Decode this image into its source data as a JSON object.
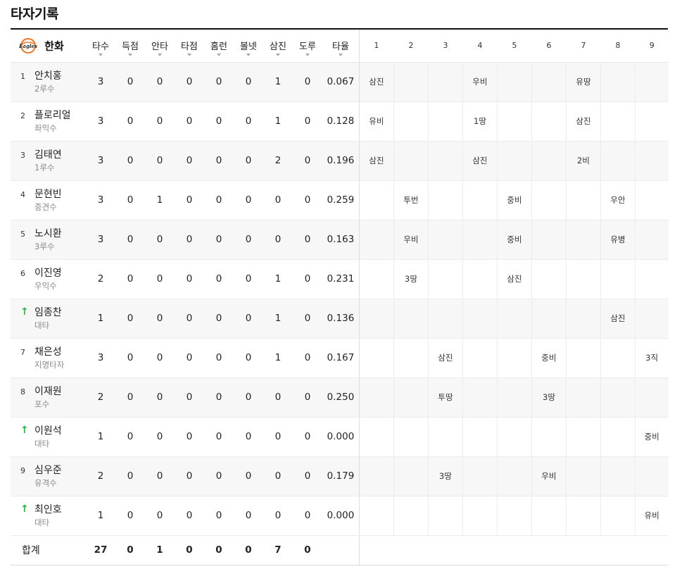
{
  "section_title": "타자기록",
  "team": {
    "name": "한화",
    "logo_text": "Eagles",
    "accent": "#f37321"
  },
  "stat_headers": [
    "타수",
    "득점",
    "안타",
    "타점",
    "홈런",
    "볼넷",
    "삼진",
    "도루",
    "타율"
  ],
  "innings": [
    "1",
    "2",
    "3",
    "4",
    "5",
    "6",
    "7",
    "8",
    "9"
  ],
  "players": [
    {
      "order": "1",
      "sub": false,
      "name": "안치홍",
      "pos": "2루수",
      "stats": [
        "3",
        "0",
        "0",
        "0",
        "0",
        "0",
        "1",
        "0",
        "0.067"
      ],
      "innings": [
        "삼진",
        "",
        "",
        "우비",
        "",
        "",
        "유땅",
        "",
        ""
      ]
    },
    {
      "order": "2",
      "sub": false,
      "name": "플로리얼",
      "pos": "좌익수",
      "stats": [
        "3",
        "0",
        "0",
        "0",
        "0",
        "0",
        "1",
        "0",
        "0.128"
      ],
      "innings": [
        "유비",
        "",
        "",
        "1땅",
        "",
        "",
        "삼진",
        "",
        ""
      ]
    },
    {
      "order": "3",
      "sub": false,
      "name": "김태연",
      "pos": "1루수",
      "stats": [
        "3",
        "0",
        "0",
        "0",
        "0",
        "0",
        "2",
        "0",
        "0.196"
      ],
      "innings": [
        "삼진",
        "",
        "",
        "삼진",
        "",
        "",
        "2비",
        "",
        ""
      ]
    },
    {
      "order": "4",
      "sub": false,
      "name": "문현빈",
      "pos": "중견수",
      "stats": [
        "3",
        "0",
        "1",
        "0",
        "0",
        "0",
        "0",
        "0",
        "0.259"
      ],
      "innings": [
        "",
        "투번",
        "",
        "",
        "중비",
        "",
        "",
        "우안",
        ""
      ]
    },
    {
      "order": "5",
      "sub": false,
      "name": "노시환",
      "pos": "3루수",
      "stats": [
        "3",
        "0",
        "0",
        "0",
        "0",
        "0",
        "0",
        "0",
        "0.163"
      ],
      "innings": [
        "",
        "우비",
        "",
        "",
        "중비",
        "",
        "",
        "유병",
        ""
      ]
    },
    {
      "order": "6",
      "sub": false,
      "name": "이진영",
      "pos": "우익수",
      "stats": [
        "2",
        "0",
        "0",
        "0",
        "0",
        "0",
        "1",
        "0",
        "0.231"
      ],
      "innings": [
        "",
        "3땅",
        "",
        "",
        "삼진",
        "",
        "",
        "",
        ""
      ]
    },
    {
      "order": "↑",
      "sub": true,
      "name": "임종찬",
      "pos": "대타",
      "stats": [
        "1",
        "0",
        "0",
        "0",
        "0",
        "0",
        "1",
        "0",
        "0.136"
      ],
      "innings": [
        "",
        "",
        "",
        "",
        "",
        "",
        "",
        "삼진",
        ""
      ]
    },
    {
      "order": "7",
      "sub": false,
      "name": "채은성",
      "pos": "지명타자",
      "stats": [
        "3",
        "0",
        "0",
        "0",
        "0",
        "0",
        "1",
        "0",
        "0.167"
      ],
      "innings": [
        "",
        "",
        "삼진",
        "",
        "",
        "중비",
        "",
        "",
        "3직"
      ]
    },
    {
      "order": "8",
      "sub": false,
      "name": "이재원",
      "pos": "포수",
      "stats": [
        "2",
        "0",
        "0",
        "0",
        "0",
        "0",
        "0",
        "0",
        "0.250"
      ],
      "innings": [
        "",
        "",
        "투땅",
        "",
        "",
        "3땅",
        "",
        "",
        ""
      ]
    },
    {
      "order": "↑",
      "sub": true,
      "name": "이원석",
      "pos": "대타",
      "stats": [
        "1",
        "0",
        "0",
        "0",
        "0",
        "0",
        "0",
        "0",
        "0.000"
      ],
      "innings": [
        "",
        "",
        "",
        "",
        "",
        "",
        "",
        "",
        "중비"
      ]
    },
    {
      "order": "9",
      "sub": false,
      "name": "심우준",
      "pos": "유격수",
      "stats": [
        "2",
        "0",
        "0",
        "0",
        "0",
        "0",
        "0",
        "0",
        "0.179"
      ],
      "innings": [
        "",
        "",
        "3땅",
        "",
        "",
        "우비",
        "",
        "",
        ""
      ]
    },
    {
      "order": "↑",
      "sub": true,
      "name": "최인호",
      "pos": "대타",
      "stats": [
        "1",
        "0",
        "0",
        "0",
        "0",
        "0",
        "0",
        "0",
        "0.000"
      ],
      "innings": [
        "",
        "",
        "",
        "",
        "",
        "",
        "",
        "",
        "유비"
      ]
    }
  ],
  "totals": {
    "label": "합계",
    "stats": [
      "27",
      "0",
      "1",
      "0",
      "0",
      "0",
      "7",
      "0",
      ""
    ]
  }
}
